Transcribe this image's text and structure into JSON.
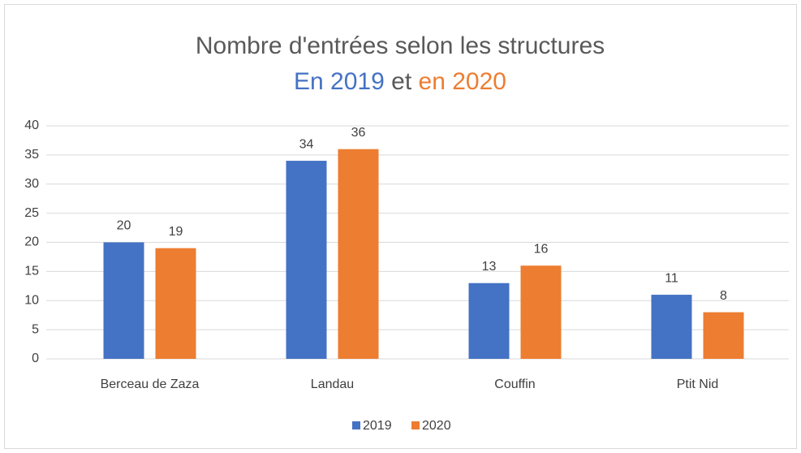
{
  "chart_data": {
    "type": "bar",
    "title": "Nombre d'entrées selon les structures",
    "subtitle": [
      "En 2019",
      "et",
      "en 2020"
    ],
    "categories": [
      "Berceau de Zaza",
      "Landau",
      "Couffin",
      "Ptit Nid"
    ],
    "series": [
      {
        "name": "2019",
        "color": "#4472c4",
        "values": [
          20,
          34,
          13,
          11
        ]
      },
      {
        "name": "2020",
        "color": "#ed7d31",
        "values": [
          19,
          36,
          16,
          8
        ]
      }
    ],
    "ylim": [
      0,
      40
    ],
    "yticks": [
      0,
      5,
      10,
      15,
      20,
      25,
      30,
      35,
      40
    ],
    "grid": true,
    "legend": "bottom"
  }
}
